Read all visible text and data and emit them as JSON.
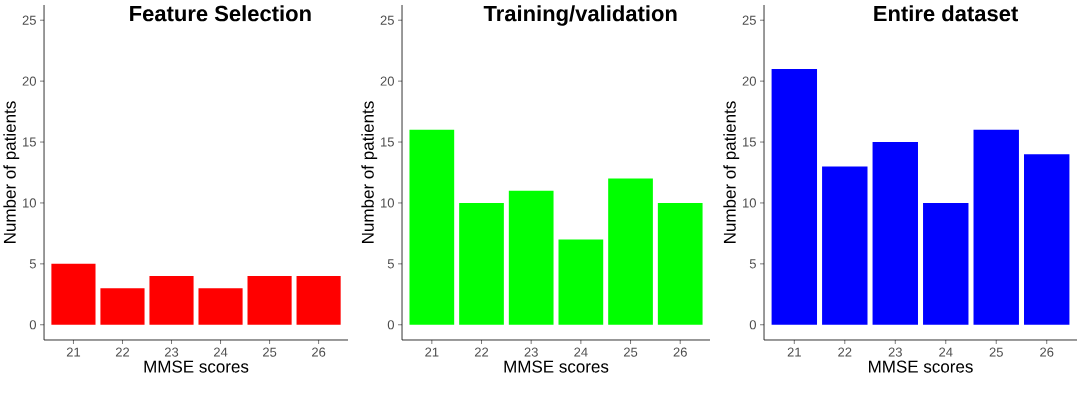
{
  "chart_data": [
    {
      "type": "bar",
      "title": "Feature Selection",
      "xlabel": "MMSE scores",
      "ylabel": "Number of patients",
      "categories": [
        "21",
        "22",
        "23",
        "24",
        "25",
        "26"
      ],
      "values": [
        5,
        3,
        4,
        3,
        4,
        4
      ],
      "color": "#ff0000",
      "ylim": [
        -1.25,
        26.25
      ],
      "yticks": [
        0,
        5,
        10,
        15,
        20,
        25
      ]
    },
    {
      "type": "bar",
      "title": "Training/validation",
      "xlabel": "MMSE scores",
      "ylabel": "Number of patients",
      "categories": [
        "21",
        "22",
        "23",
        "24",
        "25",
        "26"
      ],
      "values": [
        16,
        10,
        11,
        7,
        12,
        10
      ],
      "color": "#00ff00",
      "ylim": [
        -1.25,
        26.25
      ],
      "yticks": [
        0,
        5,
        10,
        15,
        20,
        25
      ]
    },
    {
      "type": "bar",
      "title": "Entire dataset",
      "xlabel": "MMSE scores",
      "ylabel": "Number of patients",
      "categories": [
        "21",
        "22",
        "23",
        "24",
        "25",
        "26"
      ],
      "values": [
        21,
        13,
        15,
        10,
        16,
        14
      ],
      "color": "#0000ff",
      "ylim": [
        -1.25,
        26.25
      ],
      "yticks": [
        0,
        5,
        10,
        15,
        20,
        25
      ]
    }
  ]
}
